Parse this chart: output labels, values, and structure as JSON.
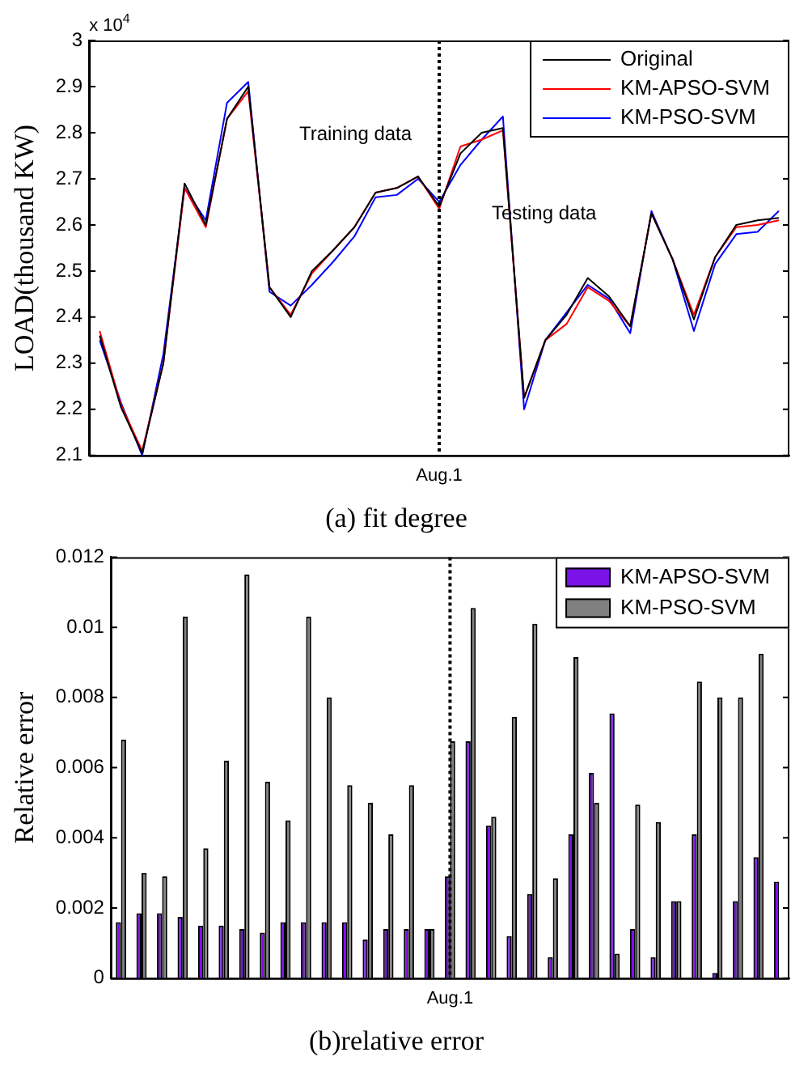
{
  "chart_data": [
    {
      "type": "line",
      "title": "(a) fit degree",
      "ylabel": "LOAD(thousand KW)",
      "categories": [
        null,
        null,
        null,
        null,
        null,
        null,
        null,
        null,
        null,
        null,
        null,
        null,
        null,
        null,
        null,
        null,
        "Aug.1",
        null,
        null,
        null,
        null,
        null,
        null,
        null,
        null,
        null,
        null,
        null,
        null,
        null,
        null,
        null,
        null
      ],
      "series": [
        {
          "name": "Original",
          "color": "#000000",
          "values": [
            2.36,
            2.205,
            2.105,
            2.3,
            2.69,
            2.6,
            2.83,
            2.9,
            2.465,
            2.4,
            2.5,
            2.545,
            2.595,
            2.67,
            2.68,
            2.705,
            2.64,
            2.755,
            2.8,
            2.81,
            2.225,
            2.35,
            2.405,
            2.485,
            2.445,
            2.38,
            2.625,
            2.525,
            2.395,
            2.53,
            2.6,
            2.61,
            2.615
          ]
        },
        {
          "name": "KM-APSO-SVM",
          "color": "#ff0000",
          "values": [
            2.37,
            2.21,
            2.11,
            2.3,
            2.68,
            2.595,
            2.83,
            2.89,
            2.465,
            2.405,
            2.495,
            2.545,
            2.595,
            2.67,
            2.68,
            2.705,
            2.635,
            2.77,
            2.785,
            2.805,
            2.225,
            2.35,
            2.385,
            2.465,
            2.435,
            2.38,
            2.625,
            2.525,
            2.405,
            2.53,
            2.595,
            2.6,
            2.61
          ]
        },
        {
          "name": "KM-PSO-SVM",
          "color": "#0000ff",
          "values": [
            2.35,
            2.215,
            2.1,
            2.32,
            2.68,
            2.61,
            2.865,
            2.91,
            2.455,
            2.425,
            2.47,
            2.52,
            2.575,
            2.66,
            2.665,
            2.7,
            2.65,
            2.73,
            2.785,
            2.835,
            2.2,
            2.35,
            2.41,
            2.47,
            2.44,
            2.365,
            2.63,
            2.525,
            2.37,
            2.515,
            2.58,
            2.585,
            2.63
          ]
        }
      ],
      "ylim": [
        2.1,
        3
      ],
      "yticks": [
        2.1,
        2.2,
        2.3,
        2.4,
        2.5,
        2.6,
        2.7,
        2.8,
        2.9,
        3
      ],
      "ref_lines": [
        {
          "axis": "x",
          "value": "Aug.1",
          "color": "#000000",
          "line_style": "dotted"
        }
      ],
      "annotations": [
        "x 10$^{4}$",
        "Training data",
        "Testing data"
      ],
      "legend": "top right",
      "grid": false,
      "marker": "none",
      "line_style": "solid"
    },
    {
      "type": "bar",
      "title": "(b)relative error",
      "ylabel": "Relative error",
      "categories": [
        null,
        null,
        null,
        null,
        null,
        null,
        null,
        null,
        null,
        null,
        null,
        null,
        null,
        null,
        null,
        null,
        "Aug.1",
        null,
        null,
        null,
        null,
        null,
        null,
        null,
        null,
        null,
        null,
        null,
        null,
        null,
        null,
        null,
        null
      ],
      "series": [
        {
          "name": "KM-APSO-SVM",
          "color": "#7b12e8",
          "values": [
            0.0016,
            0.00185,
            0.00185,
            0.00175,
            0.0015,
            0.0015,
            0.0014,
            0.0013,
            0.0016,
            0.0016,
            0.0016,
            0.0016,
            0.0011,
            0.0014,
            0.0014,
            0.0014,
            0.0029,
            0.00675,
            0.00435,
            0.0012,
            0.0024,
            0.0006,
            0.0041,
            0.00585,
            0.00755,
            0.0014,
            0.0006,
            0.0022,
            0.0041,
            0.00015,
            0.0022,
            0.00345,
            0.00275
          ]
        },
        {
          "name": "KM-PSO-SVM",
          "color": "#808080",
          "values": [
            0.0068,
            0.003,
            0.0029,
            0.0103,
            0.0037,
            0.0062,
            0.0115,
            0.0056,
            0.0045,
            0.0103,
            0.008,
            0.0055,
            0.005,
            0.0041,
            0.0055,
            0.0014,
            0.00675,
            0.01055,
            0.0046,
            0.00745,
            0.0101,
            0.00285,
            0.00915,
            0.005,
            0.0007,
            0.00495,
            0.00445,
            0.0022,
            0.00845,
            0.008,
            0.008,
            0.00925,
            null
          ]
        }
      ],
      "ylim": [
        0,
        0.012
      ],
      "yticks": [
        0,
        0.002,
        0.004,
        0.006,
        0.008,
        0.01,
        0.012
      ],
      "ref_lines": [
        {
          "axis": "x",
          "value": "Aug.1",
          "color": "#000000",
          "line_style": "dotted"
        }
      ],
      "legend": "top right",
      "grid": false
    }
  ]
}
